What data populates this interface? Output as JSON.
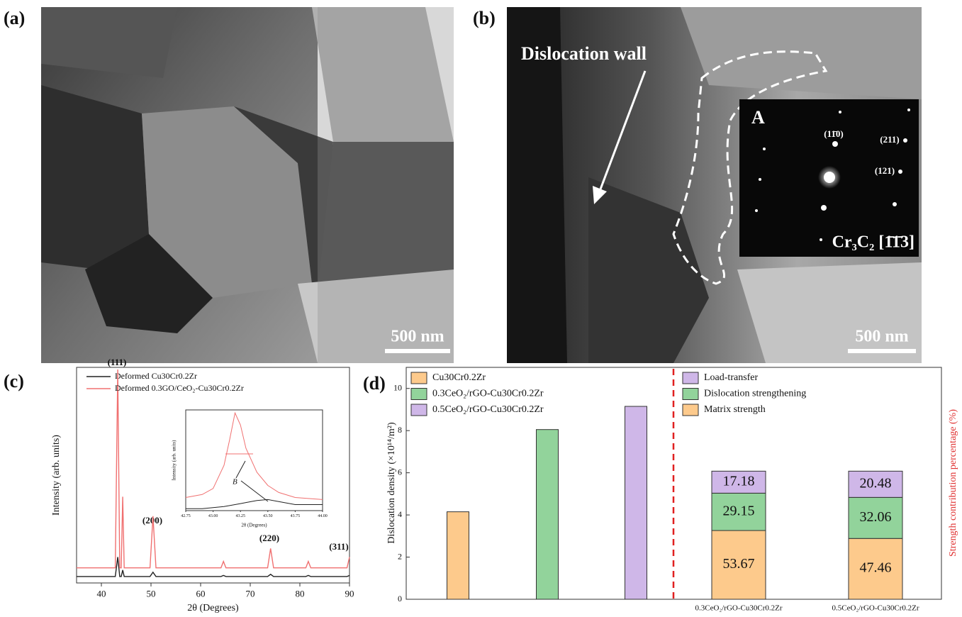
{
  "panels": {
    "a": {
      "label": "(a)",
      "scale_bar": "500 nm"
    },
    "b": {
      "label": "(b)",
      "scale_bar": "500 nm",
      "annotation": "Dislocation wall",
      "inset": {
        "label": "A",
        "spots": [
          "(11̄0)",
          "(211)",
          "(121)"
        ],
        "zone_axis": "Cr₃C₂ [1̄1̄3]"
      }
    },
    "c": {
      "label": "(c)",
      "peak_labels": [
        "(111)",
        "(200)",
        "(220)",
        "(311)"
      ],
      "inset_annotation": "B"
    },
    "d": {
      "label": "(d)"
    }
  },
  "chart_data": [
    {
      "type": "line",
      "xlabel": "2θ (Degrees)",
      "ylabel": "Intensity (arb. units)",
      "xlim": [
        35,
        90
      ],
      "xticks": [
        40,
        50,
        60,
        70,
        80,
        90
      ],
      "ylim": [
        0,
        100
      ],
      "x": [
        35,
        42.8,
        43.3,
        43.7,
        44.0,
        44.3,
        44.6,
        49.8,
        50.4,
        51.0,
        64.1,
        64.6,
        65.1,
        73.5,
        74.1,
        74.7,
        81.2,
        81.7,
        82.2,
        89.5,
        90
      ],
      "series": [
        {
          "name": "Deformed Cu30Cr0.2Zr",
          "color": "#222222",
          "values": [
            3,
            3,
            12,
            3,
            3,
            6,
            3,
            3,
            5,
            3,
            3,
            3.5,
            3,
            3,
            4,
            3,
            3,
            3.5,
            3,
            3,
            3.5
          ]
        },
        {
          "name": "Deformed 0.3GO/CeO₂-Cu30Cr0.2Zr",
          "color": "#f07070",
          "values": [
            7,
            7,
            99,
            7,
            7,
            40,
            7,
            7,
            31,
            7,
            7,
            10,
            7,
            7,
            16,
            7,
            7,
            10,
            7,
            7,
            12
          ]
        }
      ]
    },
    {
      "type": "line",
      "xlabel": "2θ (Degrees)",
      "ylabel": "Intensity (arb. units)",
      "xlim": [
        42.75,
        44
      ],
      "ylim": [
        0,
        100
      ],
      "xticks": [
        42.75,
        {
          "value": 43,
          "label": "43.00"
        },
        43.25,
        {
          "value": 43.5,
          "label": "43.50"
        },
        43.75,
        {
          "value": 44,
          "label": "44.00"
        }
      ],
      "x": [
        42.75,
        42.9,
        43.0,
        43.1,
        43.15,
        43.2,
        43.25,
        43.3,
        43.4,
        43.5,
        43.6,
        43.75,
        44.0
      ],
      "series": [
        {
          "name": null,
          "color": "#222222",
          "values": [
            2,
            2,
            3,
            4,
            5,
            6,
            7,
            8,
            10,
            11,
            9,
            6,
            6
          ]
        },
        {
          "name": null,
          "color": "#f07070",
          "values": [
            13,
            16,
            22,
            45,
            70,
            97,
            85,
            62,
            38,
            25,
            18,
            13,
            11
          ]
        }
      ]
    },
    {
      "type": "bar",
      "ylabel": "Dislocation density (×10¹⁴/m²)",
      "y2label": "Strength contribution percentage (%)",
      "ylim": [
        0,
        11
      ],
      "yticks": [
        0,
        2,
        4,
        6,
        8,
        10
      ],
      "y2lim": [
        0,
        181
      ],
      "categories": [
        null,
        null,
        null,
        "0.3CeO₂/rGO-Cu30Cr0.2Zr",
        "0.5CeO₂/rGO-Cu30Cr0.2Zr"
      ],
      "series": [
        {
          "name": "Cu30Cr0.2Zr",
          "color": "#fdca8c",
          "values": [
            4.15,
            null,
            null,
            null,
            null
          ]
        },
        {
          "name": "0.3CeO₂/rGO-Cu30Cr0.2Zr",
          "color": "#92d39b",
          "values": [
            null,
            8.05,
            null,
            null,
            null
          ]
        },
        {
          "name": "0.5CeO₂/rGO-Cu30Cr0.2Zr",
          "color": "#cfb7e8",
          "values": [
            null,
            null,
            9.15,
            null,
            null
          ]
        },
        {
          "name": "Matrix strength",
          "color": "#fdca8c",
          "axis": "y2",
          "stacked": true,
          "values": [
            null,
            null,
            null,
            53.67,
            47.46
          ]
        },
        {
          "name": "Dislocation strengthening",
          "color": "#92d39b",
          "axis": "y2",
          "stacked": true,
          "values": [
            null,
            null,
            null,
            29.15,
            32.06
          ]
        },
        {
          "name": "Load-transfer",
          "color": "#cfb7e8",
          "axis": "y2",
          "stacked": true,
          "values": [
            null,
            null,
            null,
            17.18,
            20.48
          ]
        }
      ]
    }
  ]
}
